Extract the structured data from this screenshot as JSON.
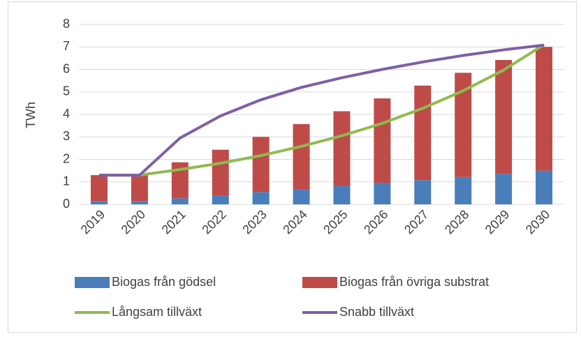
{
  "chart_data": {
    "type": "bar",
    "stacked": true,
    "ylabel": "TWh",
    "categories": [
      "2019",
      "2020",
      "2021",
      "2022",
      "2023",
      "2024",
      "2025",
      "2026",
      "2027",
      "2028",
      "2029",
      "2030"
    ],
    "series": [
      {
        "name": "Biogas från gödsel",
        "color": "#4a7ebb",
        "values": [
          0.15,
          0.15,
          0.27,
          0.4,
          0.55,
          0.68,
          0.82,
          0.96,
          1.08,
          1.22,
          1.36,
          1.5
        ]
      },
      {
        "name": "Biogas från övriga substrat",
        "color": "#be4b48",
        "values": [
          1.15,
          1.15,
          1.6,
          2.03,
          2.45,
          2.89,
          3.32,
          3.75,
          4.2,
          4.63,
          5.06,
          5.5
        ]
      },
      {
        "name": "Långsam tillväxt",
        "type": "line",
        "color": "#8ebb4f",
        "values": [
          1.3,
          1.3,
          1.55,
          1.83,
          2.17,
          2.58,
          3.05,
          3.6,
          4.27,
          5.05,
          5.97,
          7.1
        ]
      },
      {
        "name": "Snabb tillväxt",
        "type": "line",
        "color": "#7f5ea6",
        "values": [
          1.3,
          1.3,
          2.95,
          3.93,
          4.65,
          5.2,
          5.63,
          6.0,
          6.33,
          6.62,
          6.87,
          7.08
        ]
      }
    ],
    "ylim": [
      0,
      8
    ],
    "yticks": [
      0,
      1,
      2,
      3,
      4,
      5,
      6,
      7,
      8
    ],
    "grid": true
  }
}
